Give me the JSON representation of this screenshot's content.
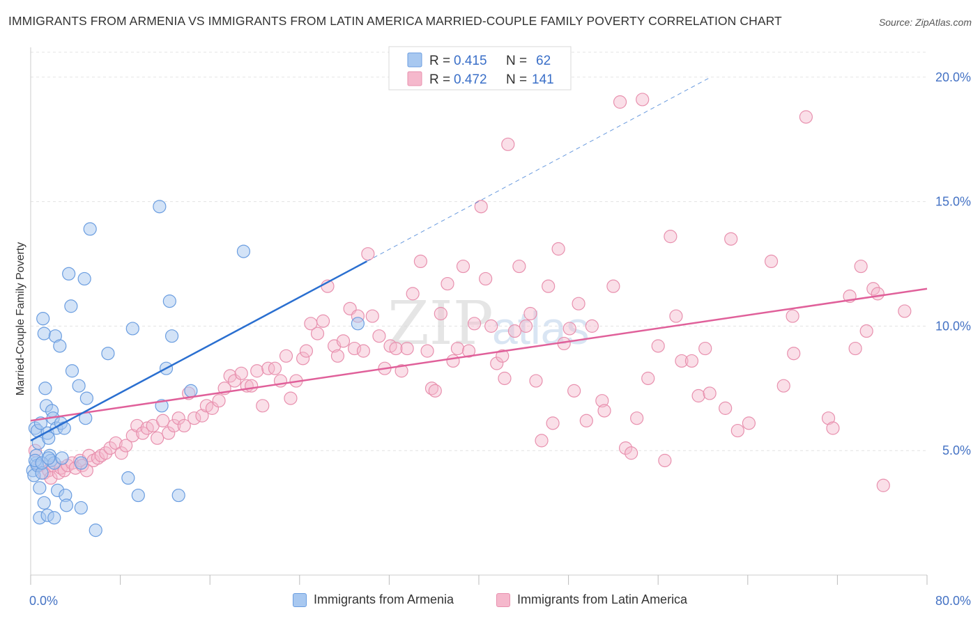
{
  "title": "IMMIGRANTS FROM ARMENIA VS IMMIGRANTS FROM LATIN AMERICA MARRIED-COUPLE FAMILY POVERTY CORRELATION CHART",
  "source": "Source: ZipAtlas.com",
  "watermark": {
    "zip": "ZIP",
    "atlas": "atlas"
  },
  "colors": {
    "armenia_fill": "#a8c8f0",
    "armenia_stroke": "#6a9de0",
    "armenia_line": "#2a6fd0",
    "latin_fill": "#f5b8cc",
    "latin_stroke": "#e890ae",
    "latin_line": "#e0609a",
    "axis_label": "#4472c4",
    "grid": "#e3e3e3"
  },
  "legend": {
    "rows": [
      {
        "r_label": "R =",
        "r_value": "0.415",
        "n_label": "N =",
        "n_value": "62"
      },
      {
        "r_label": "R =",
        "r_value": "0.472",
        "n_label": "N =",
        "n_value": "141"
      }
    ]
  },
  "chart_data": {
    "type": "scatter",
    "title": "IMMIGRANTS FROM ARMENIA VS IMMIGRANTS FROM LATIN AMERICA MARRIED-COUPLE FAMILY POVERTY CORRELATION CHART",
    "xlabel": "",
    "ylabel": "Married-Couple Family Poverty",
    "xlim": [
      0,
      80
    ],
    "ylim": [
      0,
      21
    ],
    "x_tick_labels": [
      "0.0%",
      "80.0%"
    ],
    "y_ticks": [
      5,
      10,
      15,
      20
    ],
    "y_tick_labels": [
      "5.0%",
      "10.0%",
      "15.0%",
      "20.0%"
    ],
    "grid": true,
    "legend_position": "top-center",
    "series": [
      {
        "name": "Immigrants from Armenia",
        "r": 0.415,
        "n": 62,
        "trend": {
          "x": [
            0,
            30.0
          ],
          "y": [
            5.4,
            12.6
          ]
        },
        "trend_extension": {
          "x": [
            30.0,
            60.7
          ],
          "y": [
            12.6,
            20.0
          ]
        },
        "points": [
          [
            0.2,
            4.2
          ],
          [
            0.3,
            4.0
          ],
          [
            0.4,
            5.9
          ],
          [
            0.5,
            4.5
          ],
          [
            0.5,
            4.8
          ],
          [
            0.6,
            4.4
          ],
          [
            0.7,
            5.3
          ],
          [
            0.8,
            3.5
          ],
          [
            0.6,
            5.8
          ],
          [
            0.9,
            6.1
          ],
          [
            1.0,
            4.1
          ],
          [
            1.1,
            10.3
          ],
          [
            1.2,
            9.7
          ],
          [
            1.3,
            7.5
          ],
          [
            1.4,
            6.8
          ],
          [
            1.5,
            5.7
          ],
          [
            1.6,
            5.5
          ],
          [
            1.7,
            4.8
          ],
          [
            1.8,
            4.6
          ],
          [
            1.9,
            6.6
          ],
          [
            2.0,
            6.3
          ],
          [
            2.1,
            4.5
          ],
          [
            2.2,
            9.6
          ],
          [
            2.3,
            5.9
          ],
          [
            2.4,
            3.4
          ],
          [
            2.6,
            9.2
          ],
          [
            2.7,
            6.1
          ],
          [
            2.8,
            4.7
          ],
          [
            3.0,
            5.9
          ],
          [
            3.1,
            3.2
          ],
          [
            3.2,
            2.8
          ],
          [
            3.4,
            12.1
          ],
          [
            3.6,
            10.8
          ],
          [
            3.7,
            8.2
          ],
          [
            4.3,
            7.6
          ],
          [
            4.5,
            4.5
          ],
          [
            4.5,
            2.7
          ],
          [
            4.8,
            11.9
          ],
          [
            4.9,
            6.3
          ],
          [
            5.0,
            7.1
          ],
          [
            5.3,
            13.9
          ],
          [
            5.8,
            1.8
          ],
          [
            6.9,
            8.9
          ],
          [
            8.7,
            3.9
          ],
          [
            9.1,
            9.9
          ],
          [
            9.6,
            3.2
          ],
          [
            11.5,
            14.8
          ],
          [
            11.7,
            6.8
          ],
          [
            12.1,
            8.3
          ],
          [
            12.4,
            11.0
          ],
          [
            12.6,
            9.6
          ],
          [
            13.2,
            3.2
          ],
          [
            14.3,
            7.4
          ],
          [
            19.0,
            13.0
          ],
          [
            29.2,
            10.1
          ],
          [
            0.8,
            2.3
          ],
          [
            1.2,
            2.9
          ],
          [
            1.5,
            2.4
          ],
          [
            2.1,
            2.3
          ],
          [
            0.4,
            4.6
          ],
          [
            1.0,
            4.5
          ],
          [
            1.6,
            4.7
          ]
        ]
      },
      {
        "name": "Immigrants from Latin America",
        "r": 0.472,
        "n": 141,
        "trend": {
          "x": [
            0,
            80
          ],
          "y": [
            6.2,
            11.5
          ]
        },
        "points": [
          [
            0.4,
            5.0
          ],
          [
            0.8,
            4.4
          ],
          [
            1.2,
            4.1
          ],
          [
            1.6,
            4.2
          ],
          [
            1.8,
            3.9
          ],
          [
            2.0,
            4.4
          ],
          [
            2.5,
            4.1
          ],
          [
            2.7,
            4.3
          ],
          [
            3.0,
            4.2
          ],
          [
            3.3,
            4.4
          ],
          [
            3.7,
            4.5
          ],
          [
            4.0,
            4.3
          ],
          [
            4.4,
            4.6
          ],
          [
            4.6,
            4.4
          ],
          [
            5.0,
            4.2
          ],
          [
            5.2,
            4.8
          ],
          [
            5.6,
            4.6
          ],
          [
            6.0,
            4.7
          ],
          [
            6.3,
            4.8
          ],
          [
            6.7,
            4.9
          ],
          [
            7.1,
            5.1
          ],
          [
            7.6,
            5.3
          ],
          [
            8.1,
            4.9
          ],
          [
            8.5,
            5.2
          ],
          [
            9.1,
            5.6
          ],
          [
            9.5,
            6.0
          ],
          [
            10.0,
            5.7
          ],
          [
            10.4,
            5.9
          ],
          [
            10.9,
            6.0
          ],
          [
            11.3,
            5.5
          ],
          [
            11.8,
            6.2
          ],
          [
            12.3,
            5.7
          ],
          [
            12.8,
            6.0
          ],
          [
            13.2,
            6.3
          ],
          [
            13.7,
            6.0
          ],
          [
            14.1,
            7.3
          ],
          [
            14.6,
            6.3
          ],
          [
            15.3,
            6.4
          ],
          [
            15.7,
            6.8
          ],
          [
            16.2,
            6.7
          ],
          [
            16.8,
            7.0
          ],
          [
            17.3,
            7.5
          ],
          [
            17.8,
            8.0
          ],
          [
            18.2,
            7.8
          ],
          [
            18.8,
            8.1
          ],
          [
            19.3,
            7.6
          ],
          [
            19.7,
            7.6
          ],
          [
            20.2,
            8.2
          ],
          [
            20.7,
            6.8
          ],
          [
            21.2,
            8.3
          ],
          [
            21.8,
            8.3
          ],
          [
            22.3,
            7.8
          ],
          [
            22.8,
            8.8
          ],
          [
            23.2,
            7.1
          ],
          [
            23.7,
            7.8
          ],
          [
            24.3,
            8.7
          ],
          [
            24.6,
            9.0
          ],
          [
            25.0,
            10.1
          ],
          [
            25.6,
            9.7
          ],
          [
            26.1,
            10.2
          ],
          [
            26.5,
            11.6
          ],
          [
            27.1,
            9.2
          ],
          [
            27.4,
            8.8
          ],
          [
            27.9,
            9.4
          ],
          [
            28.5,
            10.7
          ],
          [
            28.9,
            9.1
          ],
          [
            29.2,
            10.4
          ],
          [
            29.7,
            9.0
          ],
          [
            30.1,
            12.9
          ],
          [
            30.5,
            10.4
          ],
          [
            31.1,
            9.6
          ],
          [
            31.6,
            8.3
          ],
          [
            32.1,
            9.2
          ],
          [
            32.6,
            9.1
          ],
          [
            33.1,
            8.2
          ],
          [
            33.6,
            9.1
          ],
          [
            34.1,
            11.3
          ],
          [
            34.8,
            12.6
          ],
          [
            35.4,
            9.0
          ],
          [
            35.8,
            7.5
          ],
          [
            36.1,
            7.4
          ],
          [
            36.6,
            10.5
          ],
          [
            37.2,
            11.7
          ],
          [
            37.7,
            8.6
          ],
          [
            38.1,
            9.1
          ],
          [
            38.6,
            12.4
          ],
          [
            39.1,
            9.0
          ],
          [
            39.6,
            10.1
          ],
          [
            40.2,
            14.8
          ],
          [
            40.6,
            11.9
          ],
          [
            41.1,
            10.0
          ],
          [
            41.6,
            8.5
          ],
          [
            42.1,
            8.8
          ],
          [
            42.3,
            7.9
          ],
          [
            42.6,
            17.3
          ],
          [
            43.2,
            9.8
          ],
          [
            43.6,
            12.4
          ],
          [
            44.2,
            10.0
          ],
          [
            44.6,
            10.5
          ],
          [
            45.1,
            7.8
          ],
          [
            45.6,
            5.4
          ],
          [
            46.2,
            11.6
          ],
          [
            46.6,
            6.1
          ],
          [
            47.1,
            13.1
          ],
          [
            47.6,
            9.3
          ],
          [
            48.1,
            9.9
          ],
          [
            48.5,
            7.4
          ],
          [
            48.9,
            10.9
          ],
          [
            49.6,
            6.2
          ],
          [
            50.1,
            10.0
          ],
          [
            51.0,
            7.0
          ],
          [
            51.2,
            6.6
          ],
          [
            52.0,
            11.6
          ],
          [
            52.6,
            19.0
          ],
          [
            53.1,
            5.1
          ],
          [
            53.6,
            4.9
          ],
          [
            54.1,
            6.3
          ],
          [
            54.6,
            19.1
          ],
          [
            55.1,
            7.9
          ],
          [
            56.0,
            9.2
          ],
          [
            56.6,
            4.6
          ],
          [
            57.1,
            13.6
          ],
          [
            57.6,
            10.4
          ],
          [
            58.1,
            8.6
          ],
          [
            59.0,
            8.6
          ],
          [
            59.6,
            7.2
          ],
          [
            60.6,
            7.3
          ],
          [
            60.2,
            9.1
          ],
          [
            62.0,
            6.7
          ],
          [
            62.5,
            13.5
          ],
          [
            63.1,
            5.8
          ],
          [
            64.1,
            6.1
          ],
          [
            66.1,
            12.6
          ],
          [
            67.2,
            7.6
          ],
          [
            68.0,
            10.4
          ],
          [
            68.1,
            8.9
          ],
          [
            69.2,
            18.4
          ],
          [
            71.2,
            6.3
          ],
          [
            71.6,
            5.9
          ],
          [
            73.1,
            11.2
          ],
          [
            73.6,
            9.1
          ],
          [
            74.1,
            12.4
          ],
          [
            74.6,
            9.8
          ],
          [
            75.2,
            11.5
          ],
          [
            75.6,
            11.3
          ],
          [
            76.1,
            3.6
          ],
          [
            78.0,
            10.6
          ]
        ]
      }
    ]
  },
  "bottom_legend": [
    {
      "label": "Immigrants from Armenia"
    },
    {
      "label": "Immigrants from Latin America"
    }
  ]
}
